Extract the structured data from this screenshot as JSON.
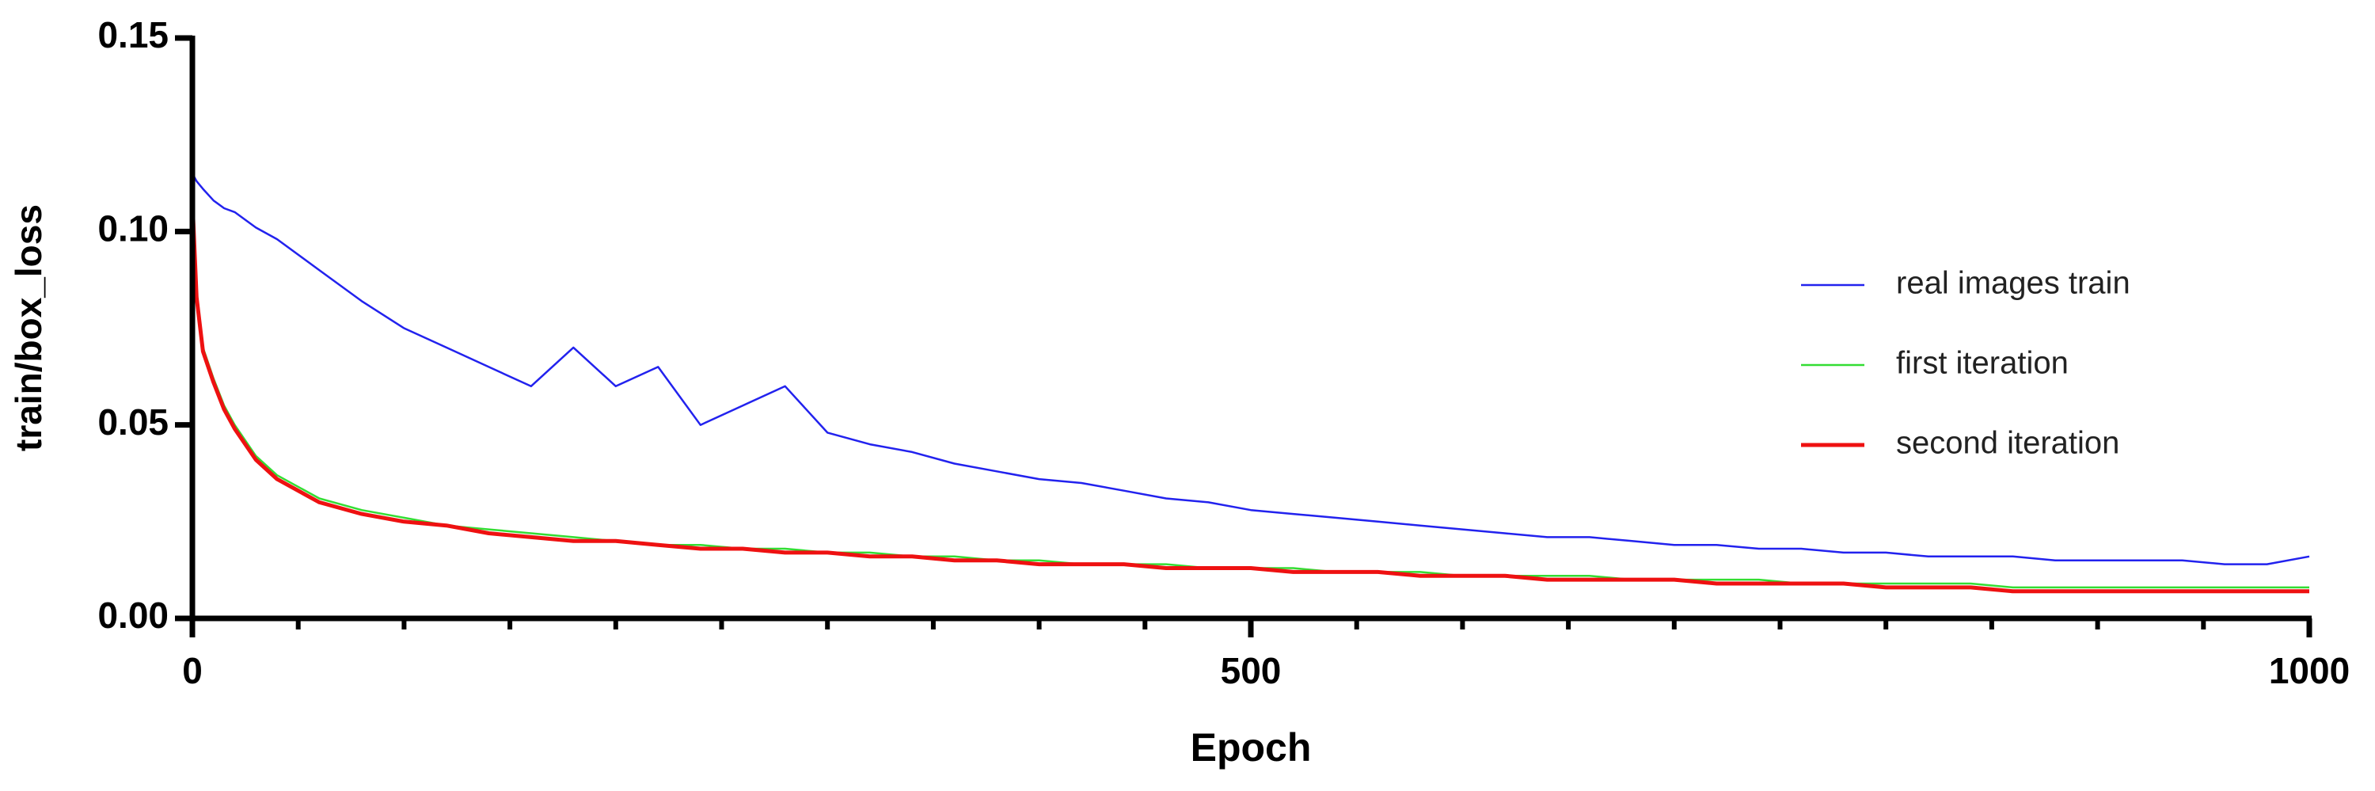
{
  "chart_data": {
    "type": "line",
    "y_label": "train/box_loss",
    "x_label": "Epoch",
    "x": [
      0,
      2,
      5,
      10,
      15,
      20,
      30,
      40,
      60,
      80,
      100,
      120,
      140,
      160,
      180,
      200,
      220,
      240,
      260,
      280,
      300,
      320,
      340,
      360,
      380,
      400,
      420,
      440,
      460,
      480,
      500,
      520,
      540,
      560,
      580,
      600,
      620,
      640,
      660,
      680,
      700,
      720,
      740,
      760,
      780,
      800,
      820,
      840,
      860,
      880,
      900,
      920,
      940,
      960,
      980,
      1000
    ],
    "series": [
      {
        "name": "real images train",
        "color": "#2222ee",
        "values": [
          0.115,
          0.113,
          0.111,
          0.108,
          0.106,
          0.105,
          0.101,
          0.098,
          0.09,
          0.082,
          0.075,
          0.07,
          0.065,
          0.06,
          0.07,
          0.06,
          0.065,
          0.05,
          0.055,
          0.06,
          0.048,
          0.045,
          0.043,
          0.04,
          0.038,
          0.036,
          0.035,
          0.033,
          0.031,
          0.03,
          0.028,
          0.027,
          0.026,
          0.025,
          0.024,
          0.023,
          0.022,
          0.021,
          0.021,
          0.02,
          0.019,
          0.019,
          0.018,
          0.018,
          0.017,
          0.017,
          0.016,
          0.016,
          0.016,
          0.015,
          0.015,
          0.015,
          0.015,
          0.014,
          0.014,
          0.016
        ]
      },
      {
        "name": "first iteration",
        "color": "#33dd33",
        "values": [
          0.11,
          0.085,
          0.07,
          0.062,
          0.055,
          0.05,
          0.042,
          0.037,
          0.031,
          0.028,
          0.026,
          0.024,
          0.023,
          0.022,
          0.021,
          0.02,
          0.019,
          0.019,
          0.018,
          0.018,
          0.017,
          0.017,
          0.016,
          0.016,
          0.015,
          0.015,
          0.014,
          0.014,
          0.014,
          0.013,
          0.013,
          0.013,
          0.012,
          0.012,
          0.012,
          0.011,
          0.011,
          0.011,
          0.011,
          0.01,
          0.01,
          0.01,
          0.01,
          0.009,
          0.009,
          0.009,
          0.009,
          0.009,
          0.008,
          0.008,
          0.008,
          0.008,
          0.008,
          0.008,
          0.008,
          0.008
        ]
      },
      {
        "name": "second iteration",
        "color": "#ee1111",
        "values": [
          0.108,
          0.083,
          0.069,
          0.061,
          0.054,
          0.049,
          0.041,
          0.036,
          0.03,
          0.027,
          0.025,
          0.024,
          0.022,
          0.021,
          0.02,
          0.02,
          0.019,
          0.018,
          0.018,
          0.017,
          0.017,
          0.016,
          0.016,
          0.015,
          0.015,
          0.014,
          0.014,
          0.014,
          0.013,
          0.013,
          0.013,
          0.012,
          0.012,
          0.012,
          0.011,
          0.011,
          0.011,
          0.01,
          0.01,
          0.01,
          0.01,
          0.009,
          0.009,
          0.009,
          0.009,
          0.008,
          0.008,
          0.008,
          0.007,
          0.007,
          0.007,
          0.007,
          0.007,
          0.007,
          0.007,
          0.007
        ]
      }
    ],
    "xlim": [
      0,
      1000
    ],
    "xticks": [
      0,
      500,
      1000
    ],
    "xminorticks": [
      50,
      100,
      150,
      200,
      250,
      300,
      350,
      400,
      450,
      550,
      600,
      650,
      700,
      750,
      800,
      850,
      900,
      950
    ],
    "ylim": [
      0,
      0.15
    ],
    "yticks": [
      {
        "value": 0,
        "label": "0.00"
      },
      {
        "value": 0.05,
        "label": "0.05"
      },
      {
        "value": 0.1,
        "label": "0.10"
      },
      {
        "value": 0.15,
        "label": "0.15"
      }
    ],
    "legend": "right"
  }
}
